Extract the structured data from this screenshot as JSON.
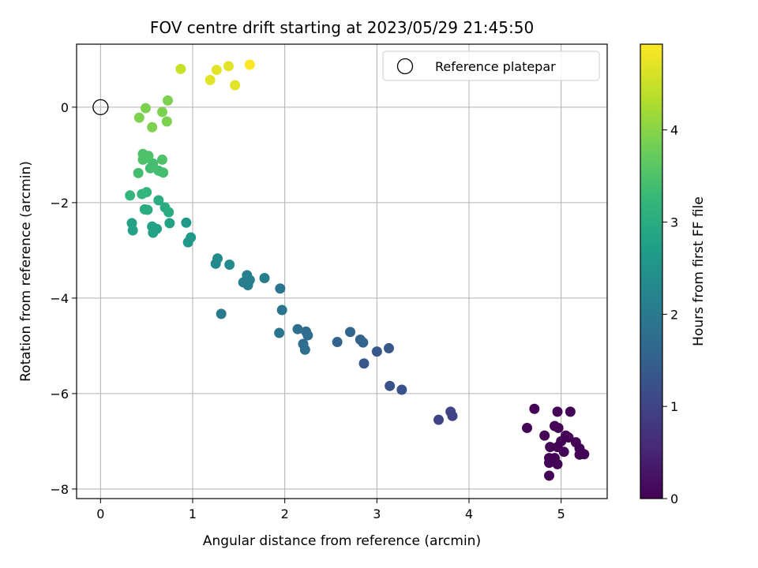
{
  "chart_data": {
    "type": "scatter",
    "title": "FOV centre drift starting at 2023/05/29 21:45:50",
    "xlabel": "Angular distance from reference (arcmin)",
    "ylabel": "Rotation from reference (arcmin)",
    "xlim": [
      -0.26,
      5.5
    ],
    "ylim": [
      -8.2,
      1.32
    ],
    "x_ticks": [
      0,
      1,
      2,
      3,
      4,
      5
    ],
    "y_ticks": [
      -8,
      -6,
      -4,
      -2,
      0
    ],
    "grid": true,
    "legend": {
      "placement": "top-right",
      "entries": [
        "Reference platepar"
      ]
    },
    "reference_point": {
      "x": 0,
      "y": 0
    },
    "colorbar": {
      "label": "Hours from first FF file",
      "colormap": "viridis",
      "range": [
        0,
        4.93
      ],
      "ticks": [
        0,
        1,
        2,
        3,
        4
      ]
    },
    "points": [
      {
        "x": 5.1,
        "y": -6.38,
        "c": 0.05
      },
      {
        "x": 4.96,
        "y": -6.38,
        "c": 0.05
      },
      {
        "x": 4.71,
        "y": -6.32,
        "c": 0.05
      },
      {
        "x": 4.63,
        "y": -6.72,
        "c": 0.05
      },
      {
        "x": 4.82,
        "y": -6.88,
        "c": 0.05
      },
      {
        "x": 4.93,
        "y": -6.68,
        "c": 0.05
      },
      {
        "x": 4.97,
        "y": -6.72,
        "c": 0.05
      },
      {
        "x": 5.05,
        "y": -6.88,
        "c": 0.05
      },
      {
        "x": 5.08,
        "y": -6.92,
        "c": 0.05
      },
      {
        "x": 4.88,
        "y": -7.12,
        "c": 0.05
      },
      {
        "x": 4.96,
        "y": -7.12,
        "c": 0.05
      },
      {
        "x": 5.0,
        "y": -7.0,
        "c": 0.05
      },
      {
        "x": 5.03,
        "y": -7.22,
        "c": 0.05
      },
      {
        "x": 5.16,
        "y": -7.02,
        "c": 0.05
      },
      {
        "x": 5.2,
        "y": -7.15,
        "c": 0.05
      },
      {
        "x": 5.25,
        "y": -7.27,
        "c": 0.05
      },
      {
        "x": 5.2,
        "y": -7.28,
        "c": 0.05
      },
      {
        "x": 4.93,
        "y": -7.35,
        "c": 0.05
      },
      {
        "x": 4.87,
        "y": -7.35,
        "c": 0.05
      },
      {
        "x": 4.87,
        "y": -7.45,
        "c": 0.05
      },
      {
        "x": 4.96,
        "y": -7.48,
        "c": 0.05
      },
      {
        "x": 4.87,
        "y": -7.72,
        "c": 0.05
      },
      {
        "x": 3.8,
        "y": -6.38,
        "c": 1.0
      },
      {
        "x": 3.82,
        "y": -6.47,
        "c": 1.0
      },
      {
        "x": 3.67,
        "y": -6.55,
        "c": 1.0
      },
      {
        "x": 3.27,
        "y": -5.92,
        "c": 1.25
      },
      {
        "x": 3.14,
        "y": -5.84,
        "c": 1.25
      },
      {
        "x": 2.86,
        "y": -5.37,
        "c": 1.35
      },
      {
        "x": 3.0,
        "y": -5.12,
        "c": 1.35
      },
      {
        "x": 3.13,
        "y": -5.05,
        "c": 1.35
      },
      {
        "x": 2.57,
        "y": -4.92,
        "c": 1.55
      },
      {
        "x": 2.82,
        "y": -4.87,
        "c": 1.55
      },
      {
        "x": 2.85,
        "y": -4.93,
        "c": 1.55
      },
      {
        "x": 2.71,
        "y": -4.71,
        "c": 1.55
      },
      {
        "x": 2.14,
        "y": -4.65,
        "c": 1.75
      },
      {
        "x": 2.23,
        "y": -4.7,
        "c": 1.75
      },
      {
        "x": 2.25,
        "y": -4.78,
        "c": 1.75
      },
      {
        "x": 2.2,
        "y": -4.96,
        "c": 1.75
      },
      {
        "x": 2.22,
        "y": -5.08,
        "c": 1.75
      },
      {
        "x": 1.94,
        "y": -4.73,
        "c": 1.9
      },
      {
        "x": 1.97,
        "y": -4.25,
        "c": 1.9
      },
      {
        "x": 1.95,
        "y": -3.8,
        "c": 1.9
      },
      {
        "x": 1.31,
        "y": -4.33,
        "c": 2.0
      },
      {
        "x": 1.78,
        "y": -3.58,
        "c": 2.1
      },
      {
        "x": 1.55,
        "y": -3.67,
        "c": 2.1
      },
      {
        "x": 1.6,
        "y": -3.73,
        "c": 2.1
      },
      {
        "x": 1.62,
        "y": -3.62,
        "c": 2.1
      },
      {
        "x": 1.59,
        "y": -3.52,
        "c": 2.1
      },
      {
        "x": 1.25,
        "y": -3.28,
        "c": 2.35
      },
      {
        "x": 1.27,
        "y": -3.17,
        "c": 2.35
      },
      {
        "x": 1.4,
        "y": -3.3,
        "c": 2.35
      },
      {
        "x": 0.98,
        "y": -2.73,
        "c": 2.6
      },
      {
        "x": 0.95,
        "y": -2.83,
        "c": 2.6
      },
      {
        "x": 0.93,
        "y": -2.42,
        "c": 2.6
      },
      {
        "x": 0.34,
        "y": -2.43,
        "c": 2.8
      },
      {
        "x": 0.35,
        "y": -2.58,
        "c": 2.8
      },
      {
        "x": 0.56,
        "y": -2.5,
        "c": 2.8
      },
      {
        "x": 0.57,
        "y": -2.63,
        "c": 2.8
      },
      {
        "x": 0.61,
        "y": -2.55,
        "c": 2.8
      },
      {
        "x": 0.75,
        "y": -2.43,
        "c": 2.8
      },
      {
        "x": 0.51,
        "y": -2.15,
        "c": 3.0
      },
      {
        "x": 0.48,
        "y": -2.14,
        "c": 3.0
      },
      {
        "x": 0.7,
        "y": -2.1,
        "c": 3.0
      },
      {
        "x": 0.74,
        "y": -2.2,
        "c": 3.0
      },
      {
        "x": 0.63,
        "y": -1.95,
        "c": 3.0
      },
      {
        "x": 0.32,
        "y": -1.85,
        "c": 3.2
      },
      {
        "x": 0.45,
        "y": -1.82,
        "c": 3.2
      },
      {
        "x": 0.5,
        "y": -1.78,
        "c": 3.2
      },
      {
        "x": 0.41,
        "y": -1.38,
        "c": 3.4
      },
      {
        "x": 0.54,
        "y": -1.28,
        "c": 3.4
      },
      {
        "x": 0.63,
        "y": -1.33,
        "c": 3.4
      },
      {
        "x": 0.68,
        "y": -1.37,
        "c": 3.4
      },
      {
        "x": 0.57,
        "y": -1.18,
        "c": 3.4
      },
      {
        "x": 0.46,
        "y": -1.1,
        "c": 3.5
      },
      {
        "x": 0.49,
        "y": -1.07,
        "c": 3.5
      },
      {
        "x": 0.52,
        "y": -1.02,
        "c": 3.5
      },
      {
        "x": 0.46,
        "y": -0.98,
        "c": 3.5
      },
      {
        "x": 0.67,
        "y": -1.1,
        "c": 3.5
      },
      {
        "x": 0.42,
        "y": -0.22,
        "c": 3.9
      },
      {
        "x": 0.56,
        "y": -0.42,
        "c": 3.9
      },
      {
        "x": 0.72,
        "y": -0.3,
        "c": 3.9
      },
      {
        "x": 0.67,
        "y": -0.1,
        "c": 3.9
      },
      {
        "x": 0.49,
        "y": -0.02,
        "c": 3.9
      },
      {
        "x": 0.73,
        "y": 0.14,
        "c": 3.9
      },
      {
        "x": 1.19,
        "y": 0.57,
        "c": 4.7
      },
      {
        "x": 1.26,
        "y": 0.78,
        "c": 4.7
      },
      {
        "x": 1.39,
        "y": 0.86,
        "c": 4.7
      },
      {
        "x": 1.46,
        "y": 0.46,
        "c": 4.7
      },
      {
        "x": 0.87,
        "y": 0.8,
        "c": 4.5
      },
      {
        "x": 1.62,
        "y": 0.89,
        "c": 4.93
      }
    ]
  }
}
